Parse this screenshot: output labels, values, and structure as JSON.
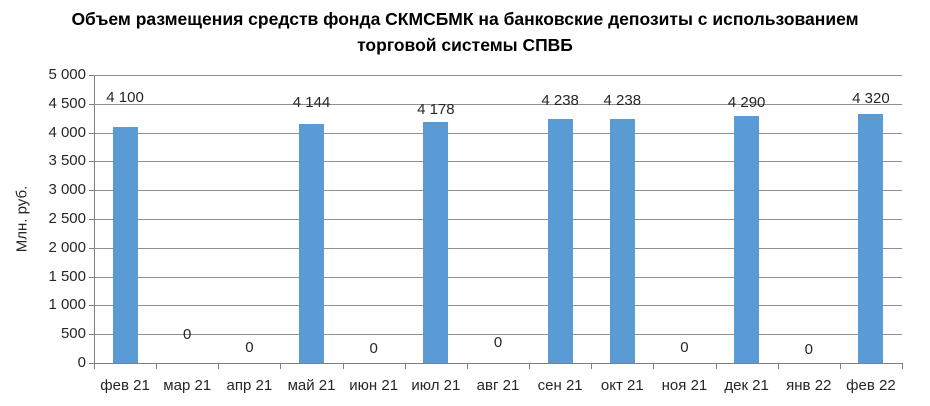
{
  "chart_data": {
    "type": "bar",
    "title": "Объем размещения средств фонда СКМСБМК на банковские депозиты с использованием торговой системы СПВБ",
    "ylabel": "Млн. руб.",
    "categories": [
      "фев 21",
      "мар 21",
      "апр 21",
      "май 21",
      "июн 21",
      "июл 21",
      "авг 21",
      "сен 21",
      "окт 21",
      "ноя 21",
      "дек 21",
      "янв 22",
      "фев 22"
    ],
    "values": [
      4100,
      0,
      0,
      4144,
      0,
      4178,
      0,
      4238,
      4238,
      0,
      4290,
      0,
      4320
    ],
    "value_labels": [
      "4 100",
      "0",
      "0",
      "4 144",
      "0",
      "4 178",
      "0",
      "4 238",
      "4 238",
      "0",
      "4 290",
      "0",
      "4 320"
    ],
    "ylim": [
      0,
      5000
    ],
    "y_tick_step": 500,
    "y_tick_labels": [
      "0",
      "500",
      "1 000",
      "1 500",
      "2 000",
      "2 500",
      "3 000",
      "3 500",
      "4 000",
      "4 500",
      "5 000"
    ],
    "grid": "horizontal",
    "legend": "none",
    "bar_color": "#5B9BD5",
    "gridline_color": "#8F8F8F",
    "axis_color": "#7F7F7F",
    "text_color": "#262626"
  }
}
